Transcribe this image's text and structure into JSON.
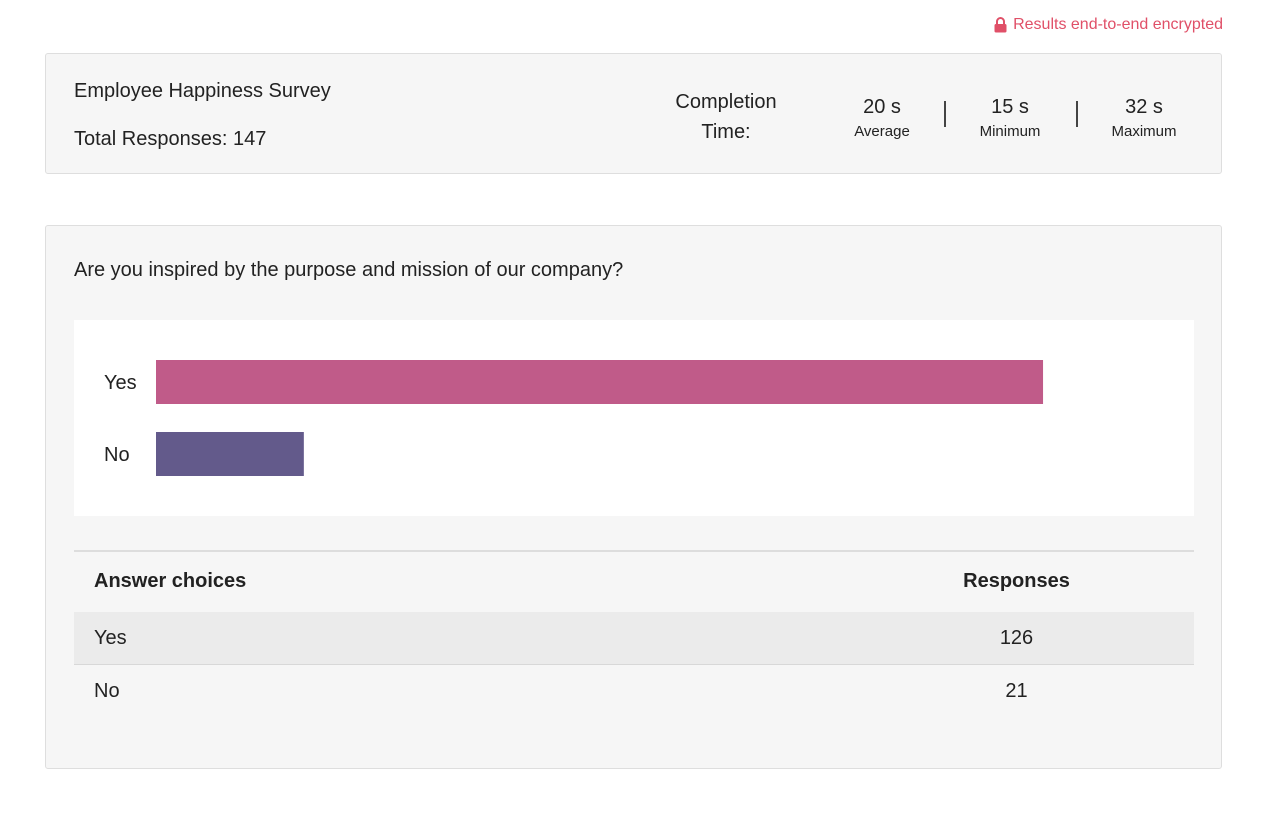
{
  "encryption_note": "Results end-to-end encrypted",
  "survey": {
    "title": "Employee Happiness Survey",
    "total_responses": "Total Responses: 147",
    "completion_time_label": "Completion Time:",
    "stats": [
      {
        "value": "20 s",
        "label": "Average"
      },
      {
        "value": "15 s",
        "label": "Minimum"
      },
      {
        "value": "32 s",
        "label": "Maximum"
      }
    ]
  },
  "question": {
    "text": "Are you inspired by the purpose and mission of our company?",
    "table": {
      "headers": [
        "Answer choices",
        "Responses"
      ],
      "rows": [
        {
          "choice": "Yes",
          "responses": "126"
        },
        {
          "choice": "No",
          "responses": "21"
        }
      ]
    }
  },
  "chart_data": {
    "type": "bar",
    "orientation": "horizontal",
    "categories": [
      "Yes",
      "No"
    ],
    "values": [
      126,
      21
    ],
    "colors": [
      "#c05b89",
      "#635a8b"
    ],
    "title": "",
    "xlabel": "",
    "ylabel": "",
    "xlim": [
      0,
      150
    ],
    "grid": false
  },
  "colors": {
    "encryption_text": "#e05068",
    "card_background": "#f6f6f6"
  },
  "icons": {
    "encryption": "lock-icon"
  }
}
